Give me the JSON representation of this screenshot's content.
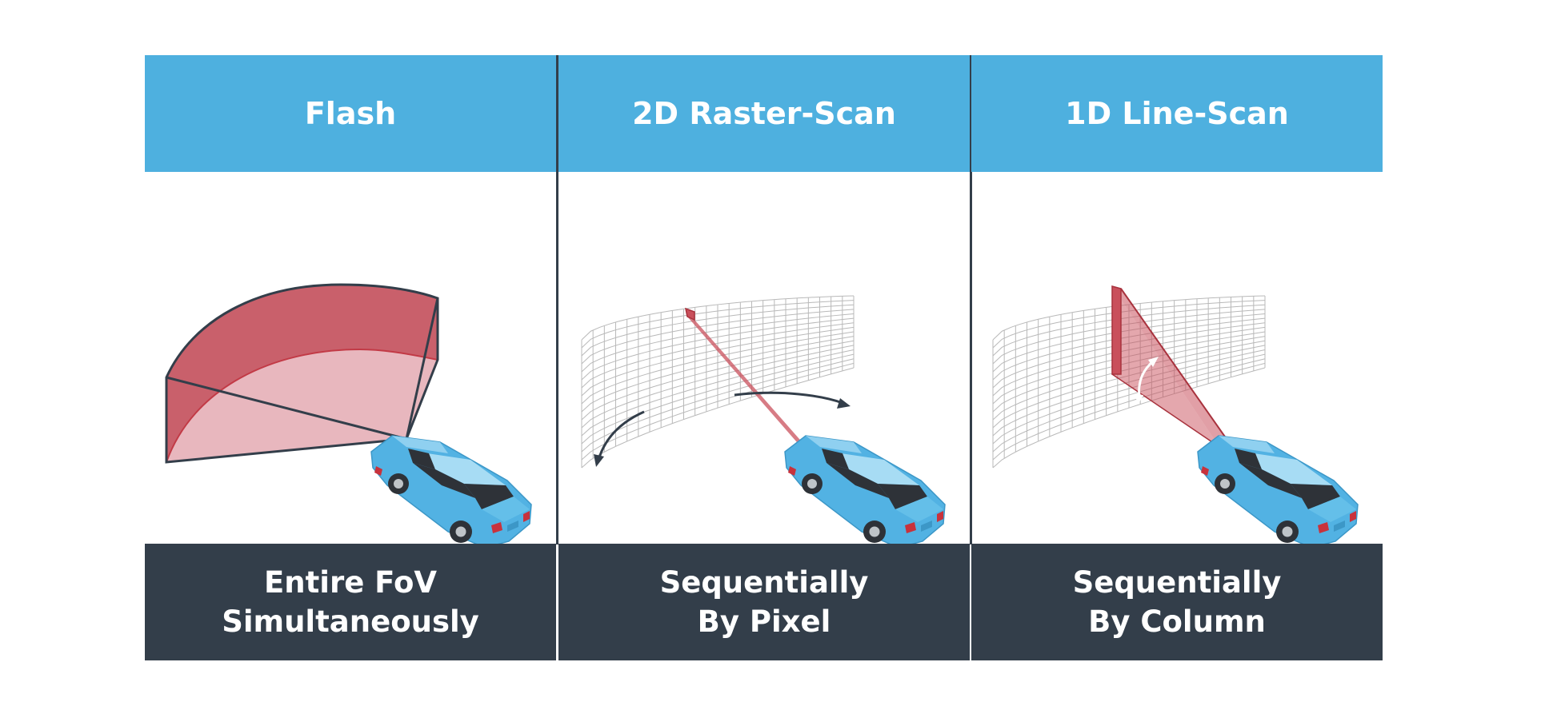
{
  "colors": {
    "header_bg": "#4eb0df",
    "footer_bg": "#333e4a",
    "beam_fill": "#c9505c",
    "beam_light": "#e8b7be",
    "car_body": "#52b2e3",
    "grid_line": "#b9b9b9"
  },
  "panels": [
    {
      "title": "Flash",
      "caption_line1": "Entire FoV",
      "caption_line2": "Simultaneously",
      "illustration": "flash-fov-beam"
    },
    {
      "title": "2D Raster-Scan",
      "caption_line1": "Sequentially",
      "caption_line2": "By Pixel",
      "illustration": "raster-scan-beam"
    },
    {
      "title": "1D Line-Scan",
      "caption_line1": "Sequentially",
      "caption_line2": "By Column",
      "illustration": "line-scan-beam"
    }
  ]
}
